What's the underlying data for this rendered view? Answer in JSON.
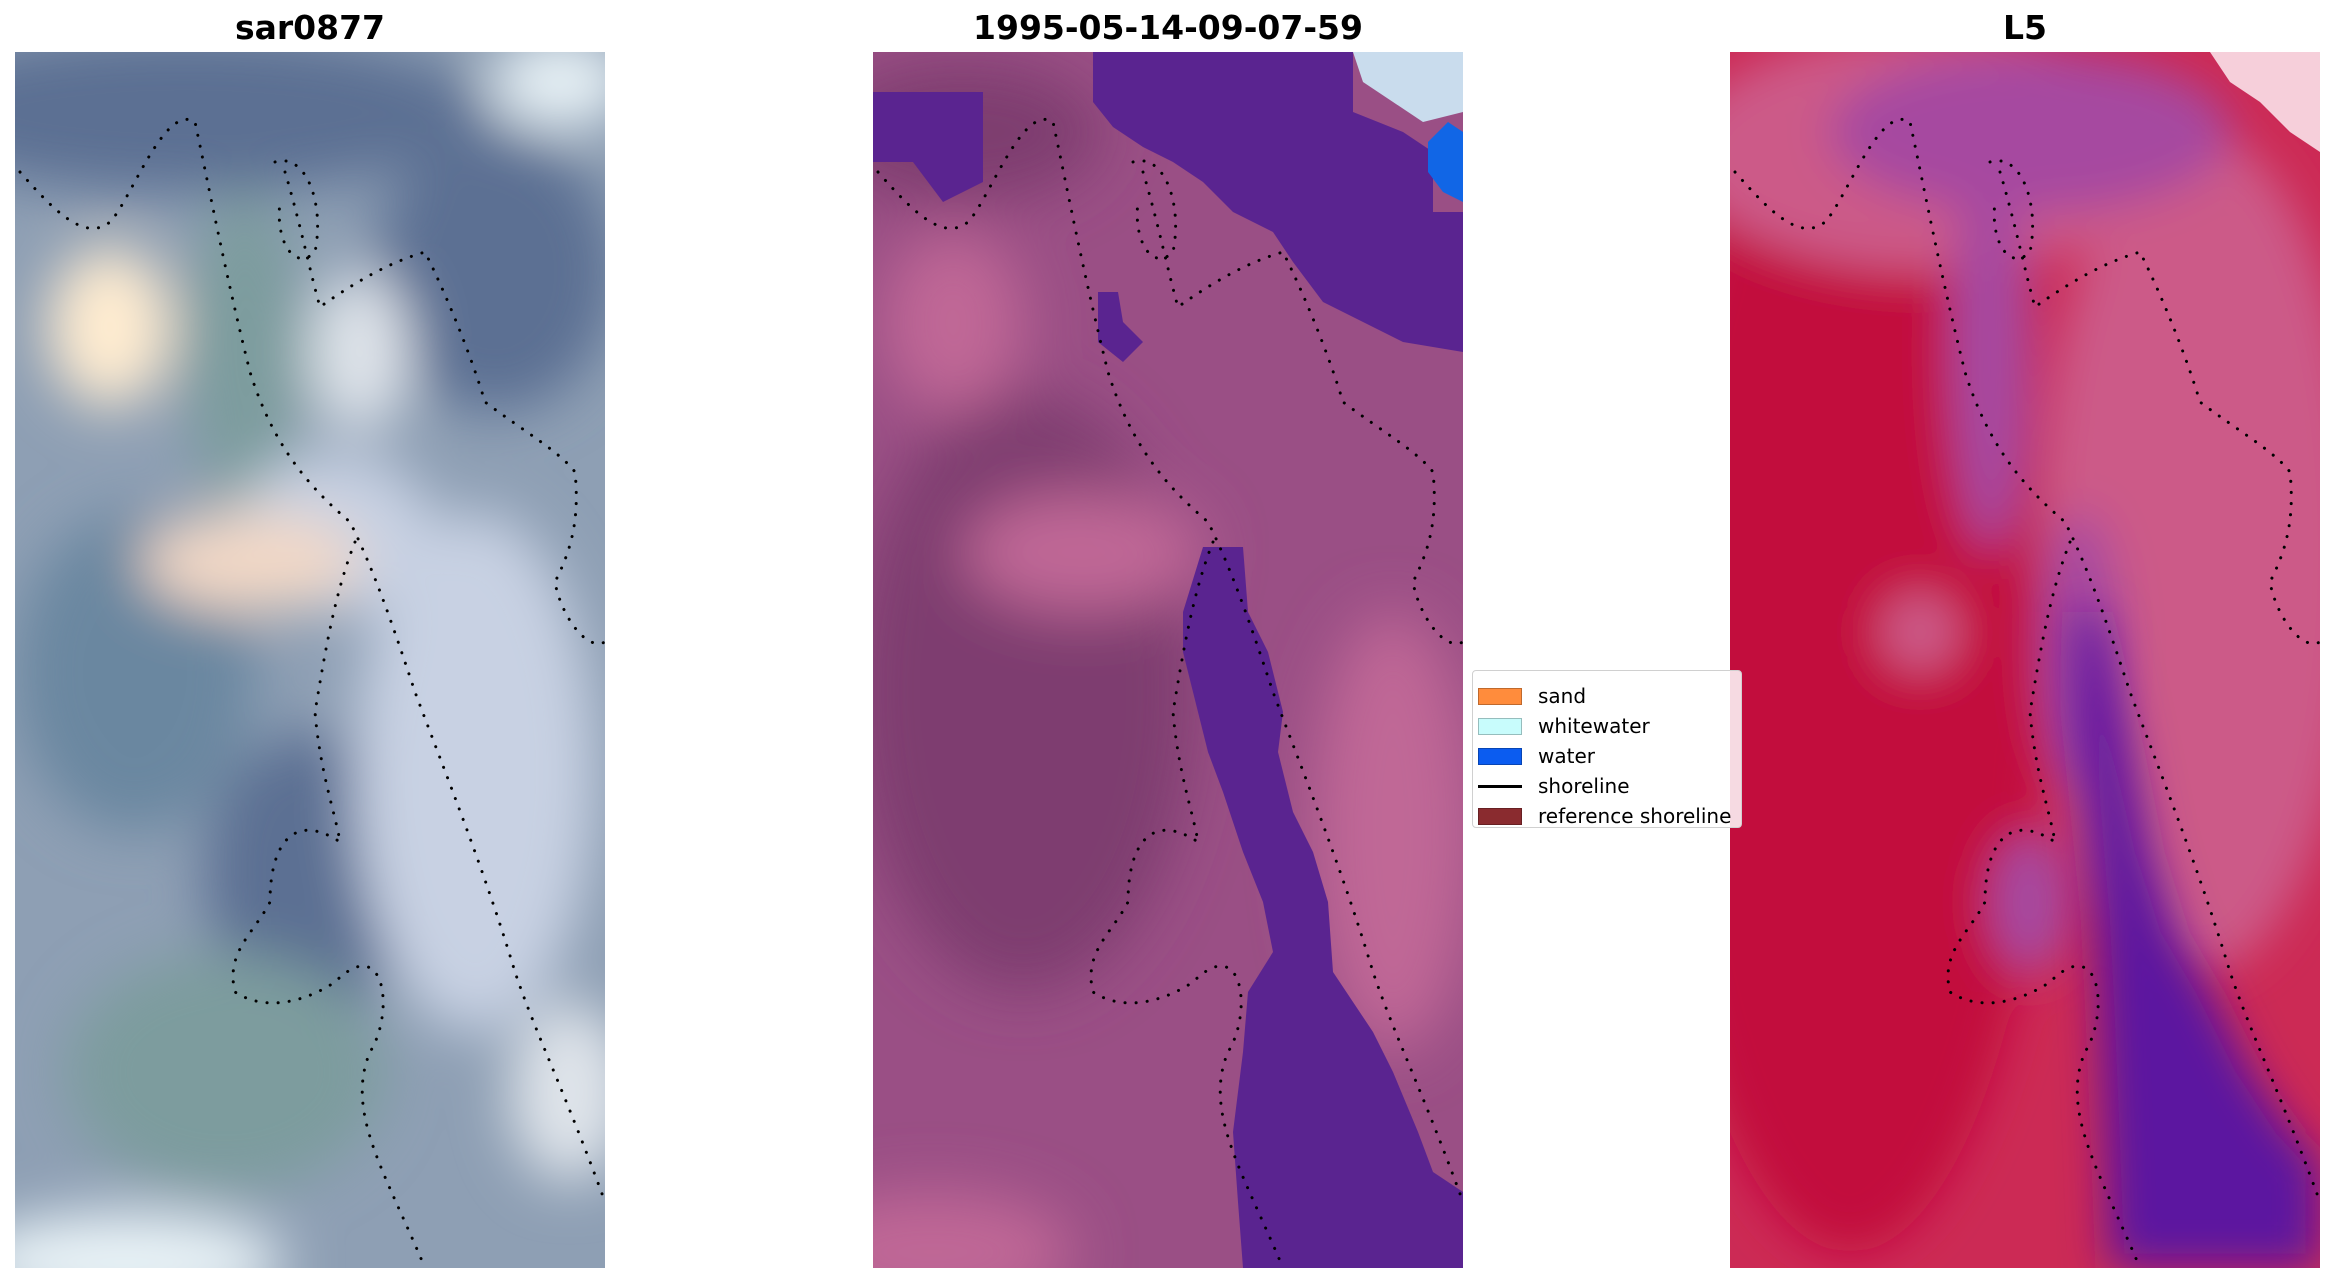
{
  "panels": [
    {
      "title": "sar0877",
      "colors": {
        "base": "#8e9fb4",
        "blob_a": "#ffecd0",
        "blob_b": "#f2d8c6",
        "blob_c": "#dfe4ea",
        "dark_a": "#5c6f93",
        "dark_b": "#6b87a0",
        "teal": "#7d9c9e",
        "pale": "#c8d1e3",
        "white_corner": "#e9f3f7"
      }
    },
    {
      "title": "1995-05-14-09-07-59",
      "colors": {
        "base": "#9a4f85",
        "dark": "#7e3e70",
        "pink": "#c06896",
        "water_class": "#5a2490",
        "water_bright": "#1166e6",
        "white_corner": "#c9dced"
      }
    },
    {
      "title": "L5",
      "colors": {
        "base": "#cc2a55",
        "red": "#c20f3c",
        "pink": "#cc5a88",
        "purple": "#a64aa0",
        "deep_purple": "#5c18a0",
        "corner": "#f6cfda"
      }
    }
  ],
  "legend": {
    "items": [
      {
        "label": "sand",
        "color": "#ff8c3c",
        "type": "patch"
      },
      {
        "label": "whitewater",
        "color": "#c8fcfc",
        "type": "patch"
      },
      {
        "label": "water",
        "color": "#0b5cf0",
        "type": "patch"
      },
      {
        "label": "shoreline",
        "color": "#000000",
        "type": "line"
      },
      {
        "label": "reference shoreline",
        "color": "#8a2b2f",
        "type": "patch"
      }
    ]
  }
}
